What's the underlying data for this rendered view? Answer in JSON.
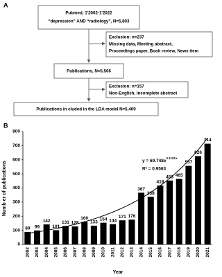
{
  "panel_a": {
    "label": "A",
    "nodes": [
      {
        "lines": [
          "Pubmed, 1'2002-1'2022",
          "“depression” AND “radiology”, N=5,803"
        ]
      },
      {
        "lines": [
          "Exclusion: n=237",
          "Missing data, Meeting abstract,",
          "Proceedings paper, Book review, News item"
        ]
      },
      {
        "lines": [
          "Publications, N=5,566"
        ]
      },
      {
        "lines": [
          "Exclusion: n=157",
          "Non-English, Incomplete abstract"
        ]
      },
      {
        "lines": [
          "Publications in cluded in the LDA model N=5,409"
        ]
      }
    ]
  },
  "chart_data": {
    "type": "bar",
    "panel_label": "B",
    "x_label": "Year",
    "y_label": "Numb er of publications",
    "categories": [
      "2002",
      "2003",
      "2004",
      "2005",
      "2006",
      "2007",
      "2008",
      "2009",
      "2010",
      "2011",
      "2012",
      "2013",
      "2014",
      "2015",
      "2016",
      "2017",
      "2018",
      "2019",
      "2020",
      "2021"
    ],
    "values": [
      89,
      99,
      142,
      101,
      131,
      128,
      160,
      133,
      154,
      144,
      171,
      176,
      367,
      338,
      418,
      453,
      465,
      557,
      626,
      714
    ],
    "color": "#000000",
    "ylim": [
      0,
      800
    ],
    "yticks": [
      0,
      100,
      200,
      300,
      400,
      500,
      600,
      700,
      800
    ],
    "grid": false,
    "trendline": {
      "prefix": "y = ",
      "a": 69.748,
      "base": "e",
      "b": 0.1191,
      "suffix": "x",
      "r2": "R² = 0.9563"
    }
  }
}
